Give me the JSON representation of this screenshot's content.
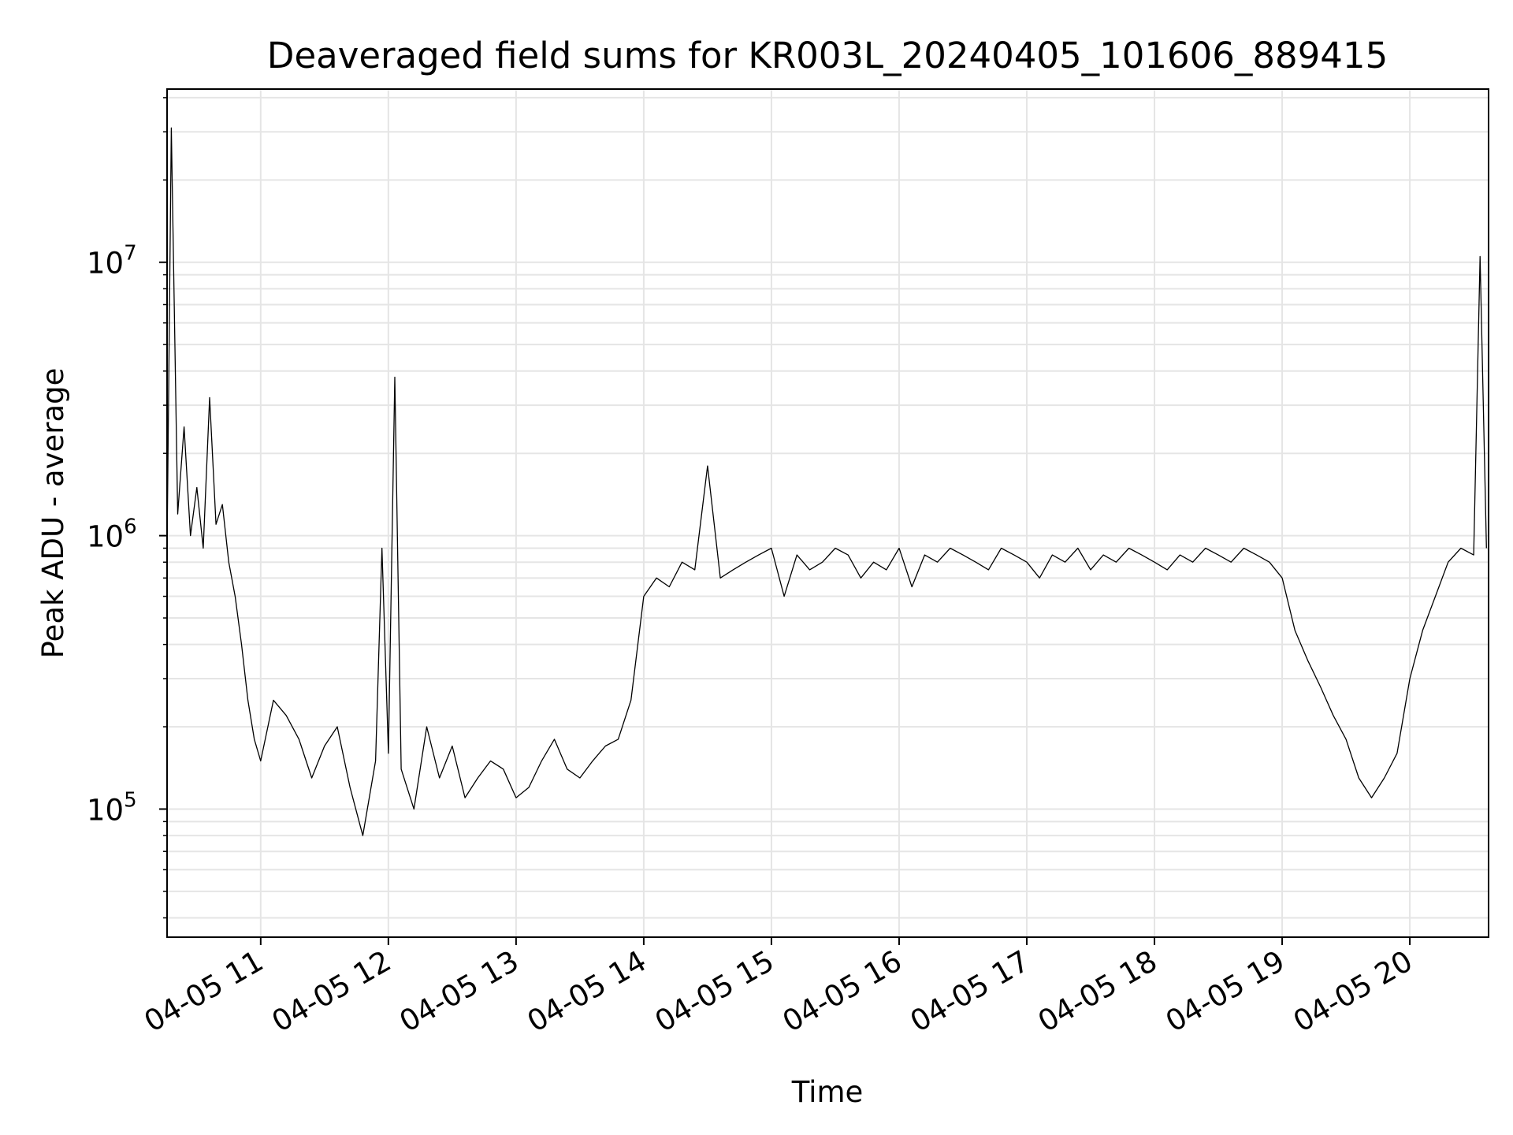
{
  "chart_data": {
    "type": "line",
    "title": "Deaveraged field sums for KR003L_20240405_101606_889415",
    "xlabel": "Time",
    "ylabel": "Peak ADU - average",
    "yscale": "log",
    "xlim": [
      "04-05 10:16",
      "04-05 20:37"
    ],
    "ylim": [
      34000,
      43000000
    ],
    "grid": true,
    "line_color": "#000000",
    "x_ticks": [
      "04-05 11",
      "04-05 12",
      "04-05 13",
      "04-05 14",
      "04-05 15",
      "04-05 16",
      "04-05 17",
      "04-05 18",
      "04-05 19",
      "04-05 20"
    ],
    "y_ticks": [
      {
        "base": "10",
        "exp": "5",
        "value": 100000
      },
      {
        "base": "10",
        "exp": "6",
        "value": 1000000
      },
      {
        "base": "10",
        "exp": "7",
        "value": 10000000
      }
    ],
    "series": [
      {
        "x": [
          "04-05 10:16",
          "04-05 10:18",
          "04-05 10:21",
          "04-05 10:24",
          "04-05 10:27",
          "04-05 10:30",
          "04-05 10:33",
          "04-05 10:36",
          "04-05 10:39",
          "04-05 10:42",
          "04-05 10:45",
          "04-05 10:48",
          "04-05 10:51",
          "04-05 10:54",
          "04-05 10:57",
          "04-05 11:00",
          "04-05 11:06",
          "04-05 11:12",
          "04-05 11:18",
          "04-05 11:24",
          "04-05 11:30",
          "04-05 11:36",
          "04-05 11:42",
          "04-05 11:48",
          "04-05 11:54",
          "04-05 11:57",
          "04-05 12:00",
          "04-05 12:03",
          "04-05 12:06",
          "04-05 12:12",
          "04-05 12:18",
          "04-05 12:24",
          "04-05 12:30",
          "04-05 12:36",
          "04-05 12:42",
          "04-05 12:48",
          "04-05 12:54",
          "04-05 13:00",
          "04-05 13:06",
          "04-05 13:12",
          "04-05 13:18",
          "04-05 13:24",
          "04-05 13:30",
          "04-05 13:36",
          "04-05 13:42",
          "04-05 13:48",
          "04-05 13:54",
          "04-05 14:00",
          "04-05 14:06",
          "04-05 14:12",
          "04-05 14:18",
          "04-05 14:24",
          "04-05 14:30",
          "04-05 14:36",
          "04-05 14:42",
          "04-05 14:48",
          "04-05 14:54",
          "04-05 15:00",
          "04-05 15:06",
          "04-05 15:12",
          "04-05 15:18",
          "04-05 15:24",
          "04-05 15:30",
          "04-05 15:36",
          "04-05 15:42",
          "04-05 15:48",
          "04-05 15:54",
          "04-05 16:00",
          "04-05 16:06",
          "04-05 16:12",
          "04-05 16:18",
          "04-05 16:24",
          "04-05 16:30",
          "04-05 16:36",
          "04-05 16:42",
          "04-05 16:48",
          "04-05 16:54",
          "04-05 17:00",
          "04-05 17:06",
          "04-05 17:12",
          "04-05 17:18",
          "04-05 17:24",
          "04-05 17:30",
          "04-05 17:36",
          "04-05 17:42",
          "04-05 17:48",
          "04-05 17:54",
          "04-05 18:00",
          "04-05 18:06",
          "04-05 18:12",
          "04-05 18:18",
          "04-05 18:24",
          "04-05 18:30",
          "04-05 18:36",
          "04-05 18:42",
          "04-05 18:48",
          "04-05 18:54",
          "04-05 19:00",
          "04-05 19:06",
          "04-05 19:12",
          "04-05 19:18",
          "04-05 19:24",
          "04-05 19:30",
          "04-05 19:36",
          "04-05 19:42",
          "04-05 19:48",
          "04-05 19:54",
          "04-05 20:00",
          "04-05 20:06",
          "04-05 20:12",
          "04-05 20:18",
          "04-05 20:24",
          "04-05 20:30",
          "04-05 20:33",
          "04-05 20:36"
        ],
        "y": [
          900000,
          31000000,
          1200000,
          2500000,
          1000000,
          1500000,
          900000,
          3200000,
          1100000,
          1300000,
          800000,
          600000,
          400000,
          250000,
          180000,
          150000,
          250000,
          220000,
          180000,
          130000,
          170000,
          200000,
          120000,
          80000,
          150000,
          900000,
          160000,
          3800000,
          140000,
          100000,
          200000,
          130000,
          170000,
          110000,
          130000,
          150000,
          140000,
          110000,
          120000,
          150000,
          180000,
          140000,
          130000,
          150000,
          170000,
          180000,
          250000,
          600000,
          700000,
          650000,
          800000,
          750000,
          1800000,
          700000,
          750000,
          800000,
          850000,
          900000,
          600000,
          850000,
          750000,
          800000,
          900000,
          850000,
          700000,
          800000,
          750000,
          900000,
          650000,
          850000,
          800000,
          900000,
          850000,
          800000,
          750000,
          900000,
          850000,
          800000,
          700000,
          850000,
          800000,
          900000,
          750000,
          850000,
          800000,
          900000,
          850000,
          800000,
          750000,
          850000,
          800000,
          900000,
          850000,
          800000,
          900000,
          850000,
          800000,
          700000,
          450000,
          350000,
          280000,
          220000,
          180000,
          130000,
          110000,
          130000,
          160000,
          300000,
          450000,
          600000,
          800000,
          900000,
          850000,
          10500000,
          900000
        ]
      }
    ]
  }
}
